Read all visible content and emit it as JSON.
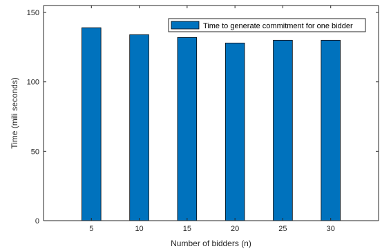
{
  "chart_data": {
    "type": "bar",
    "categories": [
      "5",
      "10",
      "15",
      "20",
      "25",
      "30"
    ],
    "series": [
      {
        "name": "Time to generate commitment for one bidder",
        "values": [
          139,
          134,
          132,
          128,
          130,
          130
        ]
      }
    ],
    "xlabel": "Number of bidders (n)",
    "ylabel": "Time (mili seconds)",
    "ylim": [
      0,
      155
    ],
    "yticks": [
      "0",
      "50",
      "100",
      "150"
    ],
    "grid": false,
    "legend_position": "top-right",
    "colors": {
      "bar": "#0072bd",
      "bar_edge": "#000000",
      "axis": "#262626"
    }
  }
}
